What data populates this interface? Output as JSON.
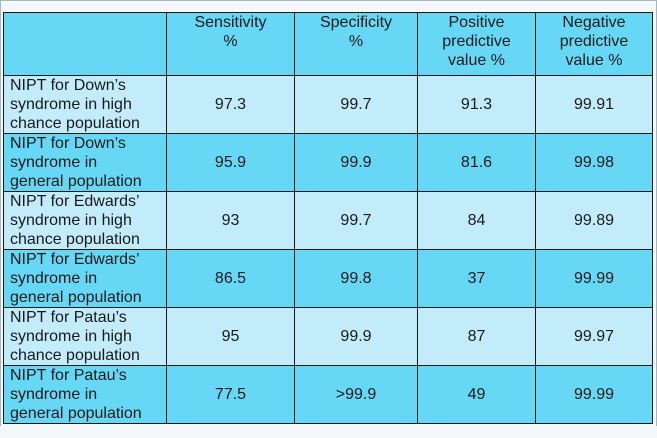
{
  "table": {
    "headers": [
      "",
      "Sensitivity %",
      "Specificity %",
      "Positive predictive value %",
      "Negative predictive value %"
    ],
    "header_lines": [
      [],
      [
        "Sensitivity",
        "%"
      ],
      [
        "Specificity",
        "%"
      ],
      [
        "Positive",
        "predictive",
        "value %"
      ],
      [
        "Negative",
        "predictive",
        "value %"
      ]
    ],
    "rows": [
      {
        "label_lines": [
          "NIPT for Down’s",
          "syndrome in high",
          "chance population"
        ],
        "values": [
          "97.3",
          "99.7",
          "91.3",
          "99.91"
        ]
      },
      {
        "label_lines": [
          "NIPT for Down’s",
          "syndrome in",
          "general population"
        ],
        "values": [
          "95.9",
          "99.9",
          "81.6",
          "99.98"
        ]
      },
      {
        "label_lines": [
          "NIPT for Edwards’",
          "syndrome in high",
          "chance population"
        ],
        "values": [
          "93",
          "99.7",
          "84",
          "99.89"
        ]
      },
      {
        "label_lines": [
          "NIPT for Edwards’",
          "syndrome in",
          "general population"
        ],
        "values": [
          "86.5",
          "99.8",
          "37",
          "99.99"
        ]
      },
      {
        "label_lines": [
          "NIPT for Patau’s",
          "syndrome in high",
          "chance population"
        ],
        "values": [
          "95",
          "99.9",
          "87",
          "99.97"
        ]
      },
      {
        "label_lines": [
          "NIPT for Patau’s",
          "syndrome in",
          "general population"
        ],
        "values": [
          "77.5",
          ">99.9",
          "49",
          "99.99"
        ]
      }
    ]
  },
  "colors": {
    "header_bg": "#66d8f5",
    "row_light": "#c3ecfb",
    "row_dark": "#66d8f5",
    "border": "#1a1a1a",
    "text": "#1a1a1a"
  }
}
